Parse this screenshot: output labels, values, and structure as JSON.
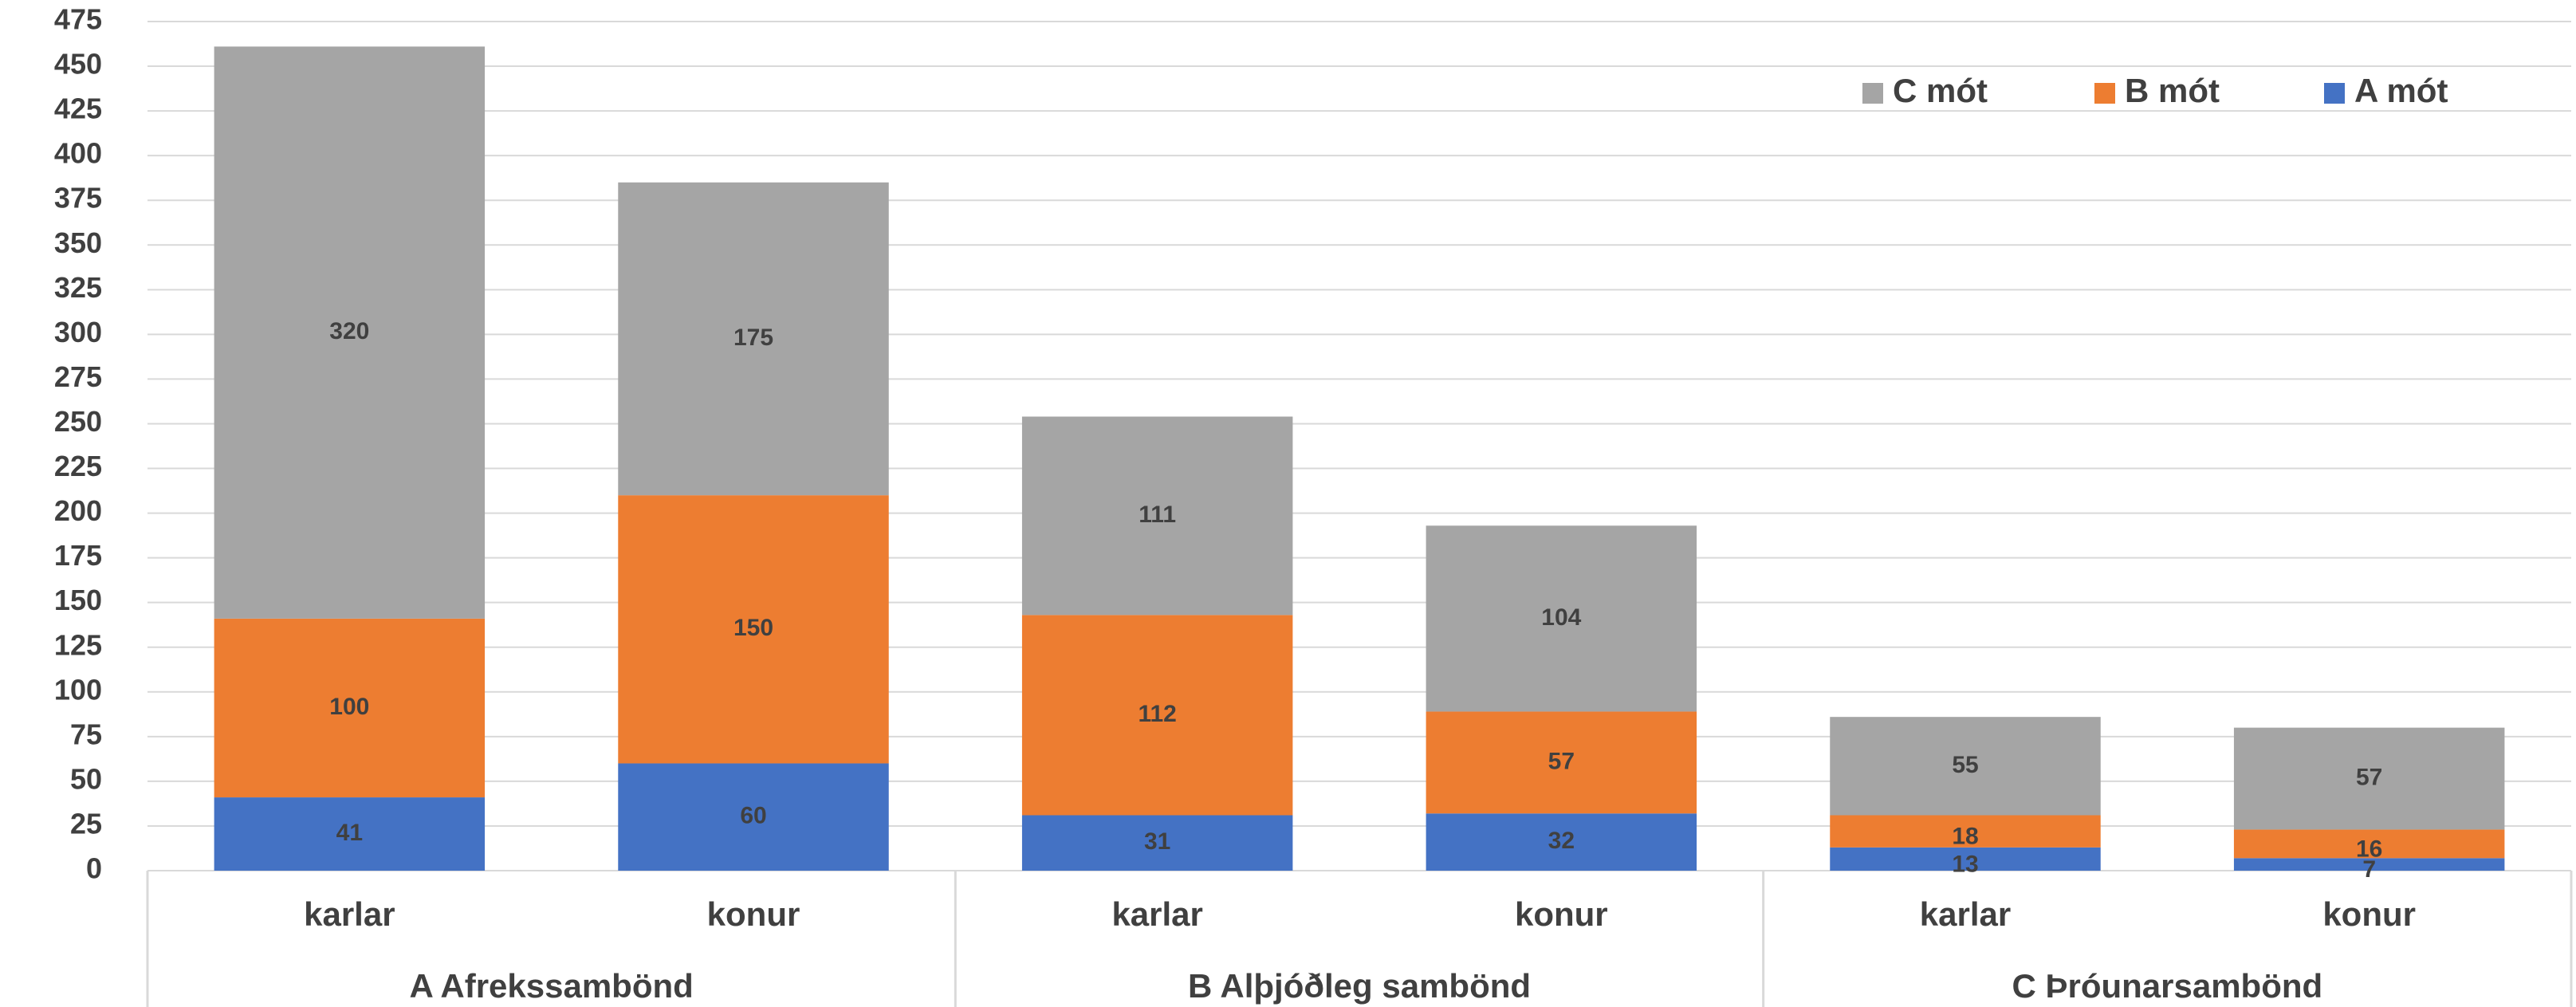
{
  "chart_data": {
    "type": "stacked_bar",
    "groups": [
      {
        "name": "A Afrekssambönd",
        "categories": [
          "karlar",
          "konur"
        ]
      },
      {
        "name": "B Alþjóðleg sambönd",
        "categories": [
          "karlar",
          "konur"
        ]
      },
      {
        "name": "C Þróunarsambönd",
        "categories": [
          "karlar",
          "konur"
        ]
      }
    ],
    "series": [
      {
        "name": "A mót",
        "color": "#4472c4",
        "values": [
          41,
          60,
          31,
          32,
          13,
          7
        ]
      },
      {
        "name": "B mót",
        "color": "#ed7d31",
        "values": [
          100,
          150,
          112,
          57,
          18,
          16
        ]
      },
      {
        "name": "C mót",
        "color": "#a5a5a5",
        "values": [
          320,
          175,
          111,
          104,
          55,
          57
        ]
      }
    ],
    "ylim": [
      0,
      475
    ],
    "yticks": [
      0,
      25,
      50,
      75,
      100,
      125,
      150,
      175,
      200,
      225,
      250,
      275,
      300,
      325,
      350,
      375,
      400,
      425,
      450,
      475
    ],
    "grid": true,
    "legend": "top-right"
  }
}
